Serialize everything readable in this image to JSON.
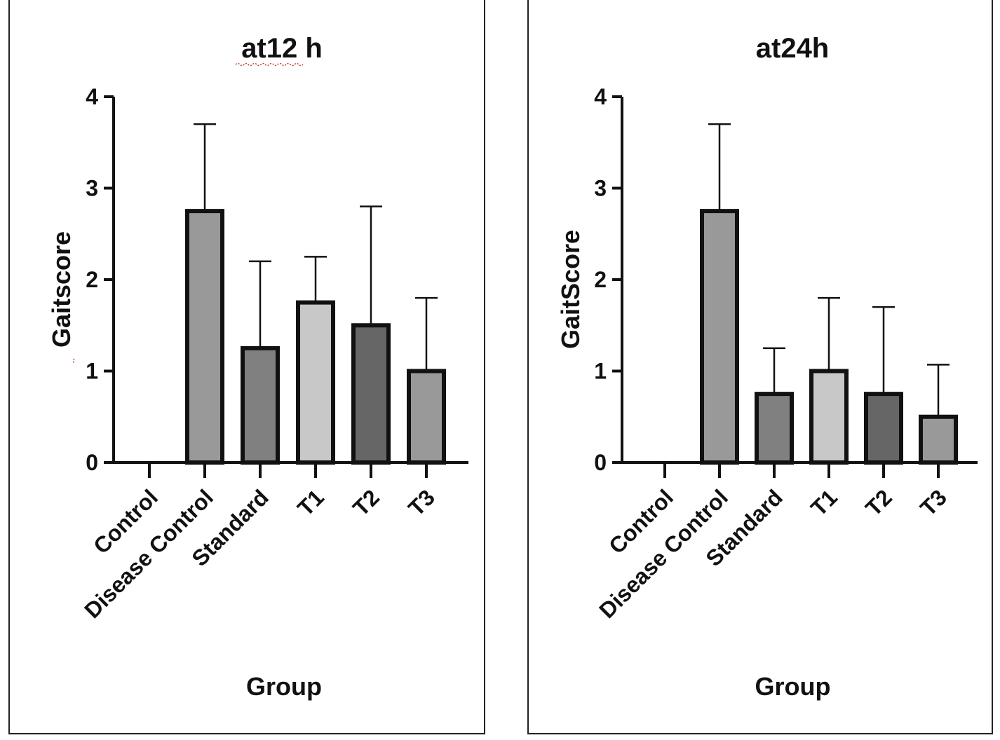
{
  "chart_data": [
    {
      "type": "bar",
      "title": "at12 h",
      "xlabel": "Group",
      "ylabel": "Gaitscore",
      "ylim": [
        0,
        4
      ],
      "yticks": [
        0,
        1,
        2,
        3,
        4
      ],
      "categories": [
        "Control",
        "Disease Control",
        "Standard",
        "T1",
        "T2",
        "T3"
      ],
      "values": [
        0,
        2.75,
        1.25,
        1.75,
        1.5,
        1.0
      ],
      "error_upper": [
        0,
        3.7,
        2.2,
        2.25,
        2.8,
        1.8
      ],
      "bar_colors": [
        "#999999",
        "#999999",
        "#808080",
        "#c8c8c8",
        "#666666",
        "#999999"
      ]
    },
    {
      "type": "bar",
      "title": "at24h",
      "xlabel": "Group",
      "ylabel": "GaitScore",
      "ylim": [
        0,
        4
      ],
      "yticks": [
        0,
        1,
        2,
        3,
        4
      ],
      "categories": [
        "Control",
        "Disease Control",
        "Standard",
        "T1",
        "T2",
        "T3"
      ],
      "values": [
        0,
        2.75,
        0.75,
        1.0,
        0.75,
        0.5
      ],
      "error_upper": [
        0,
        3.7,
        1.25,
        1.8,
        1.7,
        1.07
      ],
      "bar_colors": [
        "#999999",
        "#999999",
        "#808080",
        "#c8c8c8",
        "#666666",
        "#999999"
      ]
    }
  ]
}
